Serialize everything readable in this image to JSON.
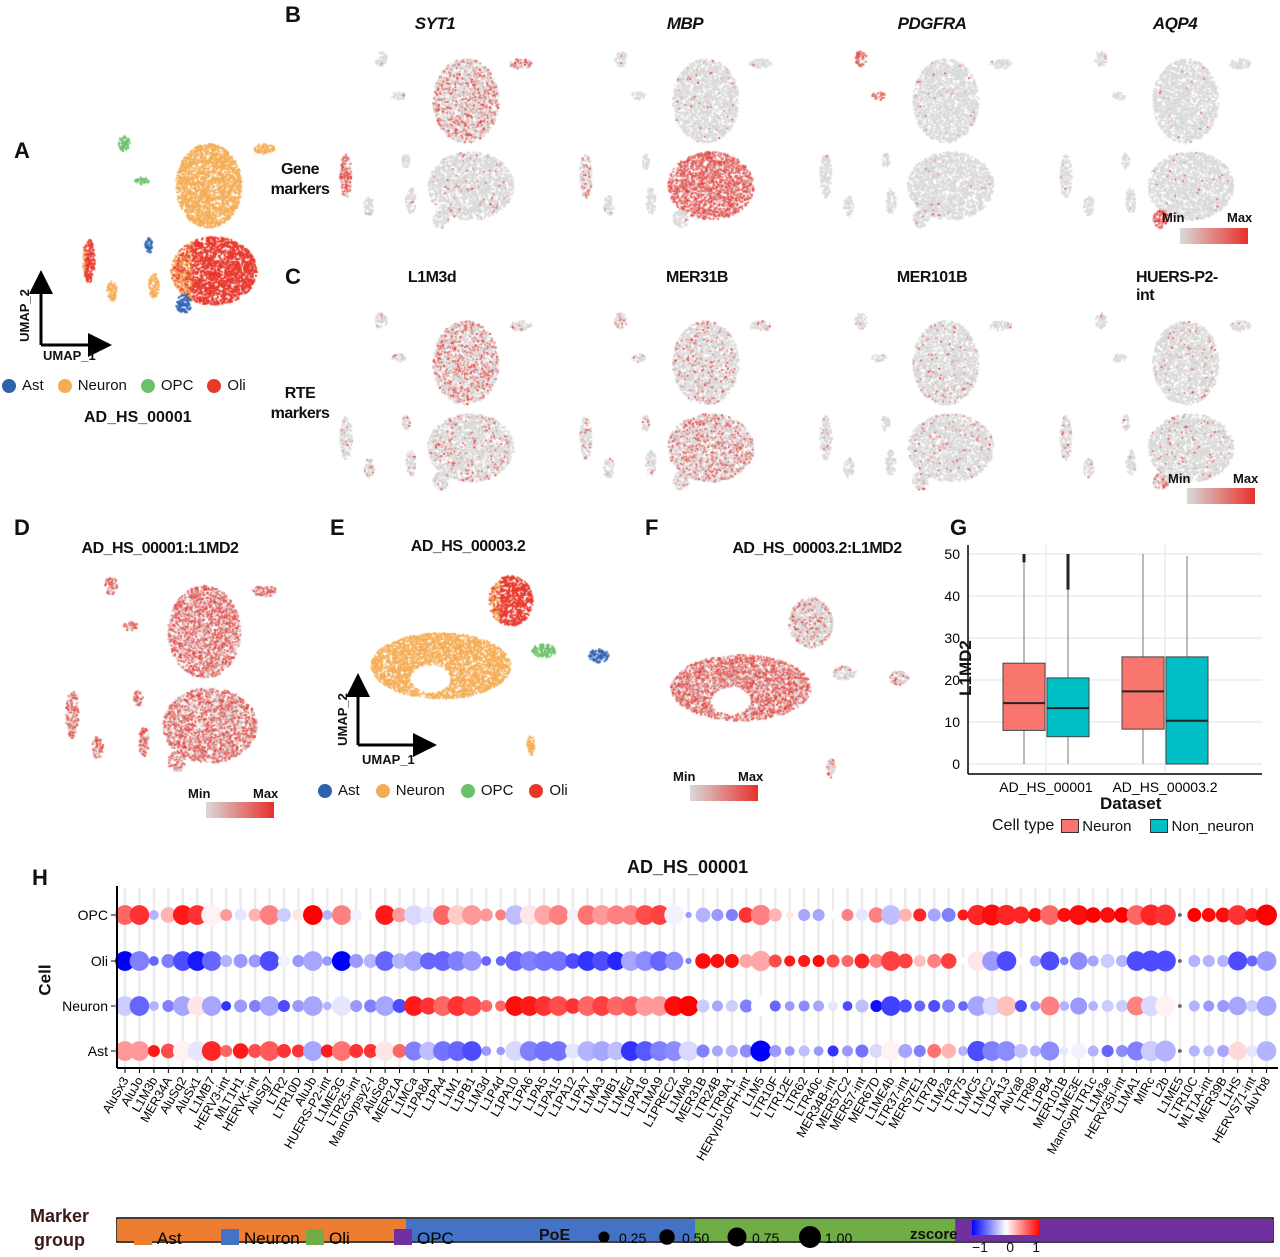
{
  "panels": {
    "A": "A",
    "B": "B",
    "C": "C",
    "D": "D",
    "E": "E",
    "F": "F",
    "G": "G",
    "H": "H"
  },
  "side_labels": {
    "gene": "Gene\nmarkers",
    "rte": "RTE\nmarkers"
  },
  "gene_markers": [
    "SYT1",
    "MBP",
    "PDGFRA",
    "AQP4"
  ],
  "rte_markers": [
    "L1M3d",
    "MER31B",
    "MER101B",
    "HUERS-P2-int"
  ],
  "umap": {
    "x_label": "UMAP_1",
    "y_label": "UMAP_2"
  },
  "cell_types": [
    {
      "name": "Ast",
      "color": "#2e62b0"
    },
    {
      "name": "Neuron",
      "color": "#f5ad55"
    },
    {
      "name": "OPC",
      "color": "#6bc06b"
    },
    {
      "name": "Oli",
      "color": "#e8372b"
    }
  ],
  "expression_colors": {
    "min": "#d9d9d9",
    "max": "#e8302a"
  },
  "colorbar": {
    "min": "Min",
    "max": "Max"
  },
  "panel_A": {
    "dataset": "AD_HS_00001"
  },
  "panel_D": {
    "title": "AD_HS_00001:L1MD2"
  },
  "panel_E": {
    "title": "AD_HS_00003.2"
  },
  "panel_F": {
    "title": "AD_HS_00003.2:L1MD2"
  },
  "chart_data": [
    {
      "type": "box",
      "panel": "G",
      "xlabel": "Dataset",
      "ylabel": "L1MD2",
      "ylim": [
        0,
        50
      ],
      "yticks": [
        0,
        10,
        20,
        30,
        40,
        50
      ],
      "categories": [
        "AD_HS_00001",
        "AD_HS_00003.2"
      ],
      "legend_title": "Cell type",
      "legend_position": "bottom",
      "grid": true,
      "series": [
        {
          "name": "Neuron",
          "color": "#f8766d",
          "boxes": [
            {
              "min": 0,
              "q1": 8,
              "median": 14.5,
              "q3": 24,
              "max": 48,
              "outliers": [
                48,
                50
              ]
            },
            {
              "min": 0,
              "q1": 8.3,
              "median": 17.3,
              "q3": 25.5,
              "max": 50,
              "outliers": []
            }
          ]
        },
        {
          "name": "Non_neuron",
          "color": "#00bfc4",
          "boxes": [
            {
              "min": 0,
              "q1": 6.5,
              "median": 13.3,
              "q3": 20.5,
              "max": 41.5,
              "outliers": [
                41.5,
                50
              ]
            },
            {
              "min": 0,
              "q1": 0,
              "median": 10.3,
              "q3": 25.5,
              "max": 49.5,
              "outliers": []
            }
          ]
        }
      ]
    },
    {
      "type": "dot",
      "panel": "H",
      "title": "AD_HS_00001",
      "ylabel": "Cell",
      "zscore_range": [
        -1,
        1
      ],
      "zscore_colors": {
        "low": "#0000ff",
        "mid": "#ffffff",
        "high": "#ff0000"
      },
      "categories": [
        "AluSx3",
        "AluJo",
        "L1M3b",
        "MER34A",
        "AluSq2",
        "AluSx1",
        "L1MB7",
        "HERV3-int",
        "MLT1H1",
        "HERVK-int",
        "AluSg7",
        "LTR2",
        "LTR10D",
        "AluJb",
        "HUERS-P2-int",
        "L1ME3G",
        "LTR25-int",
        "MamGypsy2-I",
        "AluSc8",
        "MER21A",
        "L1MCa",
        "L1PA8A",
        "L1PA4",
        "L1M1",
        "L1PB1",
        "L1M3d",
        "L1P4d",
        "L1PA10",
        "L1PA6",
        "L1PA5",
        "L1PA15",
        "L1PA12",
        "L1PA7",
        "L1MA3",
        "L1MB1",
        "L1MEd",
        "L1PA16",
        "L1MA9",
        "L1PREC2",
        "L1MA8",
        "MER31B",
        "LTR24B",
        "LTR9A1",
        "HERVIP10FH-int",
        "L1M5",
        "LTR10F",
        "LTR12E",
        "LTR62",
        "LTR40c",
        "MER34B-int",
        "MER57C2",
        "MER57-int",
        "MER67D",
        "L1ME4b",
        "LTR37-int",
        "MER57E1",
        "LTR7B",
        "L1M2a",
        "LTR75",
        "L1MC5",
        "L1MC2",
        "L1PA13",
        "AluYa8",
        "LTR89",
        "L1PB4",
        "MER101B",
        "L1ME3E",
        "MamGypLTR1c",
        "L1M3e",
        "HERV35I-int",
        "L1MA1",
        "MIRc",
        "L2b",
        "L1ME5",
        "LTR10C",
        "MLT1A-int",
        "MER39B",
        "L1HS",
        "HERVS71-int",
        "AluYb8"
      ],
      "rows": [
        {
          "name": "OPC",
          "zscore": [
            0.6,
            0.8,
            -0.3,
            0.3,
            0.9,
            0.8,
            0.05,
            0.4,
            -0.1,
            0.3,
            0.5,
            -0.2,
            0.1,
            1,
            -0.3,
            0.5,
            -0.05,
            0,
            0.9,
            0.4,
            -0.15,
            -0.1,
            0.6,
            0.2,
            0.4,
            0.4,
            0.5,
            -0.25,
            0.1,
            0.35,
            0.5,
            -0.05,
            0.55,
            0.4,
            0.5,
            0.5,
            0.7,
            0.75,
            -0.05,
            -0.4,
            -0.3,
            -0.4,
            -0.5,
            0.8,
            0.5,
            0.3,
            0.1,
            -0.35,
            -0.35,
            0,
            0.5,
            -0.1,
            0.5,
            -0.25,
            0.3,
            0.85,
            -0.35,
            -0.5,
            0.9,
            0.85,
            0.95,
            0.85,
            0.85,
            0.95,
            0.6,
            0.95,
            0.95,
            1,
            0.95,
            1,
            0.6,
            0.85,
            0.8,
            0,
            1,
            0.95,
            0.95,
            0.8,
            0.9,
            1
          ],
          "poe": [
            0.8,
            0.8,
            0.2,
            0.5,
            0.8,
            0.8,
            0.9,
            0.3,
            0.3,
            0.35,
            0.8,
            0.4,
            0.3,
            0.8,
            0.2,
            0.8,
            0.3,
            0.2,
            0.8,
            0.45,
            0.8,
            0.6,
            0.8,
            0.8,
            0.8,
            0.35,
            0.25,
            0.8,
            0.8,
            0.8,
            0.8,
            0.3,
            0.8,
            0.8,
            0.75,
            0.8,
            0.8,
            0.8,
            0.8,
            0.08,
            0.45,
            0.3,
            0.3,
            0.5,
            0.85,
            0.35,
            0.1,
            0.3,
            0.3,
            0.15,
            0.3,
            0.3,
            0.5,
            0.8,
            0.35,
            0.35,
            0.35,
            0.4,
            0.25,
            0.85,
            0.9,
            0.85,
            0.6,
            0.4,
            0.8,
            0.4,
            0.8,
            0.5,
            0.5,
            0.5,
            0.8,
            0.9,
            0.9,
            0.03,
            0.4,
            0.4,
            0.45,
            0.8,
            0.4,
            0.9
          ]
        },
        {
          "name": "Oli",
          "zscore": [
            -1,
            -0.5,
            -0.6,
            -0.5,
            -0.7,
            -0.9,
            -0.6,
            -0.3,
            -0.4,
            -0.4,
            -0.7,
            -0.05,
            -0.4,
            -0.35,
            -0.4,
            -1,
            -0.4,
            -0.3,
            -0.6,
            -0.3,
            -0.35,
            -0.6,
            -0.6,
            -0.5,
            -0.4,
            -0.6,
            -0.6,
            -0.6,
            -0.5,
            -0.55,
            -0.55,
            -0.7,
            -0.8,
            -0.7,
            -0.85,
            -0.35,
            -0.45,
            -0.6,
            -0.45,
            -0.5,
            0.95,
            0.95,
            0.95,
            0.35,
            0.35,
            0.7,
            0.9,
            0.9,
            0.95,
            0.7,
            0.6,
            0.85,
            0.5,
            0.75,
            0.75,
            0.25,
            0.5,
            0.75,
            0,
            0.1,
            -0.4,
            -0.7,
            0,
            -0.35,
            -0.7,
            -0.5,
            -0.45,
            -0.35,
            -0.2,
            -0.3,
            -0.7,
            -0.7,
            -0.7,
            0,
            -0.3,
            -0.3,
            -0.3,
            -0.7,
            -0.6,
            -0.4
          ],
          "poe": [
            0.8,
            0.8,
            0.2,
            0.4,
            0.8,
            0.8,
            0.8,
            0.3,
            0.4,
            0.35,
            0.8,
            0.3,
            0.3,
            0.8,
            0.2,
            0.8,
            0.4,
            0.4,
            0.8,
            0.5,
            0.8,
            0.6,
            0.8,
            0.8,
            0.8,
            0.2,
            0.2,
            0.8,
            0.8,
            0.8,
            0.8,
            0.5,
            0.8,
            0.8,
            0.7,
            0.8,
            0.8,
            0.8,
            0.7,
            0.08,
            0.5,
            0.4,
            0.4,
            0.4,
            0.85,
            0.35,
            0.25,
            0.3,
            0.3,
            0.35,
            0.3,
            0.45,
            0.4,
            0.8,
            0.45,
            0.3,
            0.4,
            0.5,
            0.1,
            0.8,
            0.8,
            0.8,
            0.1,
            0.25,
            0.75,
            0.15,
            0.65,
            0.25,
            0.4,
            0.3,
            0.8,
            0.9,
            0.9,
            0.03,
            0.3,
            0.3,
            0.3,
            0.75,
            0.25,
            0.8
          ]
        },
        {
          "name": "Neuron",
          "zscore": [
            -0.2,
            -0.6,
            -0.3,
            -0.5,
            -0.35,
            0.1,
            -0.35,
            -0.8,
            -0.4,
            -0.5,
            -0.35,
            -0.7,
            -0.4,
            -0.35,
            -0.3,
            -0.1,
            -0.4,
            -0.5,
            -0.35,
            -0.7,
            0.9,
            0.8,
            0.6,
            0.8,
            0.7,
            0.6,
            0.6,
            0.95,
            0.9,
            0.8,
            0.7,
            0.8,
            0.6,
            0.75,
            0.6,
            0.65,
            0.4,
            0.4,
            0.95,
            1,
            -0.2,
            -0.35,
            -0.2,
            -0.5,
            0,
            -0.6,
            -0.4,
            -0.45,
            -0.35,
            -0.1,
            -0.7,
            -0.25,
            -0.95,
            -0.75,
            -0.7,
            -0.6,
            -0.7,
            -0.5,
            -0.6,
            -0.35,
            -0.15,
            0.25,
            -0.7,
            -0.4,
            0.5,
            -0.3,
            -0.4,
            -0.3,
            -0.2,
            -0.2,
            0.5,
            -0.15,
            0.05,
            0,
            -0.3,
            -0.4,
            -0.4,
            -0.35,
            -0.2,
            -0.35
          ],
          "poe": [
            0.8,
            0.8,
            0.2,
            0.3,
            0.8,
            0.8,
            0.8,
            0.2,
            0.35,
            0.3,
            0.8,
            0.3,
            0.3,
            0.8,
            0.15,
            0.8,
            0.3,
            0.35,
            0.8,
            0.4,
            0.8,
            0.6,
            0.8,
            0.8,
            0.8,
            0.3,
            0.25,
            0.8,
            0.8,
            0.8,
            0.8,
            0.5,
            0.8,
            0.8,
            0.75,
            0.8,
            0.8,
            0.8,
            0.8,
            0.85,
            0.35,
            0.25,
            0.3,
            0.35,
            0.8,
            0.25,
            0.2,
            0.25,
            0.25,
            0.2,
            0.2,
            0.35,
            0.3,
            0.8,
            0.35,
            0.25,
            0.3,
            0.35,
            0.2,
            0.8,
            0.75,
            0.8,
            0.3,
            0.2,
            0.75,
            0.2,
            0.6,
            0.2,
            0.3,
            0.3,
            0.75,
            0.85,
            0.85,
            0.03,
            0.25,
            0.25,
            0.3,
            0.7,
            0.3,
            0.8
          ]
        },
        {
          "name": "Ast",
          "zscore": [
            0.4,
            0.4,
            0.9,
            0.7,
            0.05,
            -0.1,
            0.85,
            0.6,
            0.9,
            0.7,
            0.65,
            0.8,
            0.8,
            -0.35,
            0.9,
            0.55,
            0.8,
            0.8,
            0.1,
            0.6,
            -0.5,
            -0.25,
            -0.55,
            -0.6,
            -0.7,
            -0.4,
            -0.4,
            -0.15,
            -0.5,
            -0.55,
            -0.55,
            -0.1,
            -0.3,
            -0.35,
            -0.25,
            -0.8,
            -0.65,
            -0.5,
            -0.45,
            -0.15,
            -0.5,
            -0.35,
            -0.3,
            -0.45,
            -1,
            -0.4,
            -0.4,
            -0.25,
            -0.4,
            -0.8,
            -0.4,
            -0.55,
            -0.15,
            0.05,
            -0.35,
            -0.5,
            0.55,
            0.3,
            -0.3,
            -0.7,
            -0.5,
            -0.45,
            -0.25,
            -0.3,
            -0.45,
            -0.1,
            -0.05,
            -0.3,
            -0.6,
            -0.45,
            -0.5,
            -0.2,
            -0.3,
            0,
            -0.3,
            -0.25,
            -0.35,
            0.15,
            -0.1,
            -0.3
          ],
          "poe": [
            0.8,
            0.8,
            0.3,
            0.45,
            0.8,
            0.8,
            0.8,
            0.3,
            0.5,
            0.4,
            0.8,
            0.4,
            0.35,
            0.8,
            0.35,
            0.8,
            0.4,
            0.4,
            0.8,
            0.4,
            0.75,
            0.7,
            0.8,
            0.8,
            0.8,
            0.2,
            0.15,
            0.8,
            0.8,
            0.8,
            0.8,
            0.5,
            0.8,
            0.8,
            0.7,
            0.8,
            0.8,
            0.8,
            0.8,
            0.8,
            0.35,
            0.25,
            0.3,
            0.35,
            0.9,
            0.3,
            0.2,
            0.25,
            0.2,
            0.25,
            0.25,
            0.35,
            0.4,
            0.8,
            0.4,
            0.3,
            0.4,
            0.45,
            0.2,
            0.85,
            0.8,
            0.8,
            0.4,
            0.25,
            0.75,
            0.15,
            0.5,
            0.25,
            0.3,
            0.3,
            0.75,
            0.85,
            0.9,
            0.03,
            0.25,
            0.25,
            0.3,
            0.7,
            0.3,
            0.8
          ]
        }
      ],
      "marker_groups": [
        {
          "name": "Ast",
          "color": "#ed7d31",
          "count": 20
        },
        {
          "name": "Neuron",
          "color": "#4472c4",
          "count": 20
        },
        {
          "name": "Oli",
          "color": "#70ad47",
          "count": 18
        },
        {
          "name": "OPC",
          "color": "#7030a0",
          "count": 22
        }
      ],
      "marker_group_title": "Marker\ngroup",
      "poe_legend": {
        "title": "PoE",
        "values": [
          0.25,
          0.5,
          0.75,
          1.0
        ],
        "labels": [
          "0.25",
          "0.50",
          "0.75",
          "1.00"
        ]
      },
      "zscore_legend": {
        "title": "zscore",
        "labels": [
          "−1",
          "0",
          "1"
        ]
      }
    }
  ]
}
